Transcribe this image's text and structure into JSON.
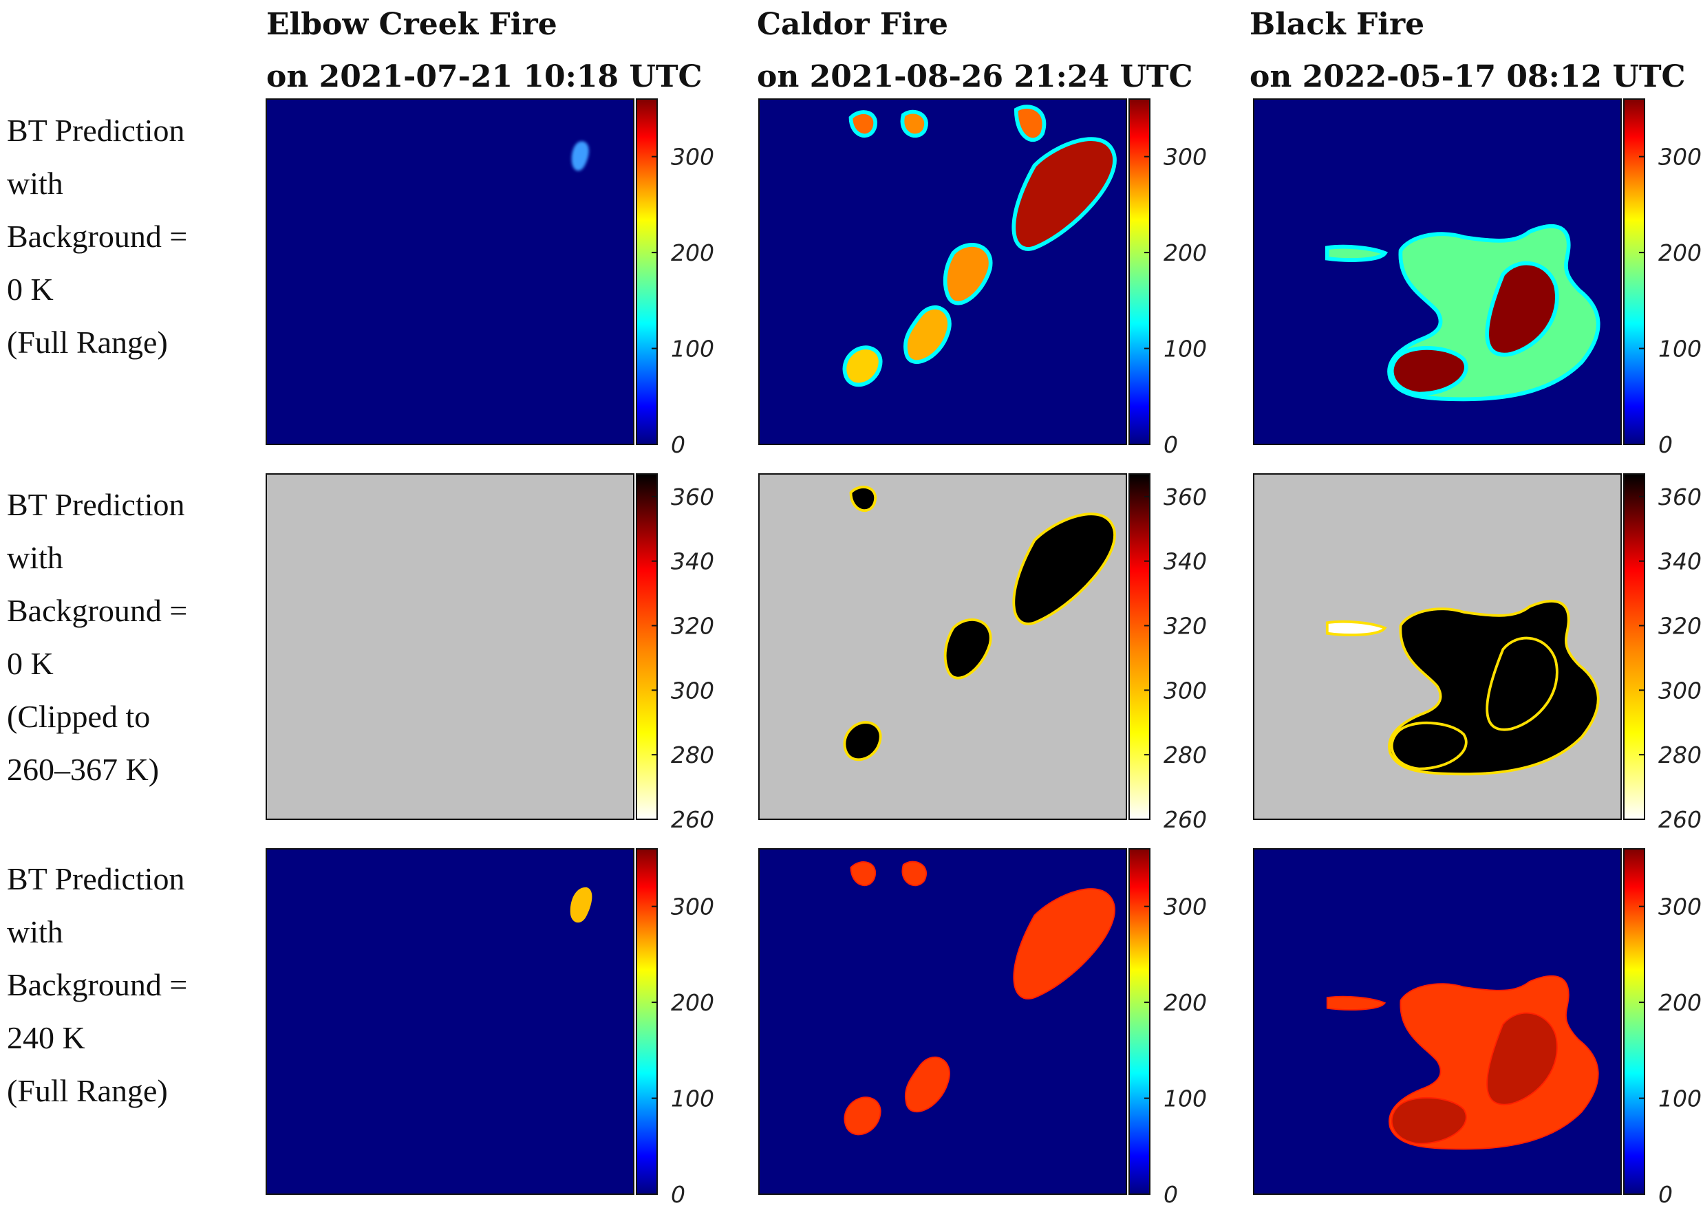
{
  "columns": [
    {
      "title_line1": "Elbow Creek Fire",
      "title_line2": "on 2021-07-21 10:18 UTC"
    },
    {
      "title_line1": "Caldor Fire",
      "title_line2": "on 2021-08-26 21:24 UTC"
    },
    {
      "title_line1": "Black Fire",
      "title_line2": "on 2022-05-17 08:12 UTC"
    }
  ],
  "rows": [
    {
      "label_lines": [
        "BT  Prediction",
        "with",
        "Background  =",
        "0 K",
        "(Full Range)"
      ]
    },
    {
      "label_lines": [
        "BT  Prediction",
        "with",
        "Background  =",
        "0 K",
        "(Clipped      to",
        "260–367 K)"
      ]
    },
    {
      "label_lines": [
        "BT  Prediction",
        "with",
        "Background  =",
        "240 K",
        "(Full Range)"
      ]
    }
  ],
  "colors": {
    "jet_background": "#00007f",
    "gray_background": "#c0c0c0",
    "hot_low": "#ffffff",
    "hot_high": "#000000"
  },
  "chart_data": [
    {
      "type": "heatmap",
      "row": 0,
      "colormap": "jet",
      "background_value": 0,
      "colorbar": {
        "min": 0,
        "max": 360,
        "ticks": [
          0,
          100,
          200,
          300
        ]
      }
    },
    {
      "type": "heatmap",
      "row": 1,
      "colormap": "hot_r",
      "background_value": null,
      "colorbar": {
        "min": 260,
        "max": 367,
        "ticks": [
          260,
          280,
          300,
          320,
          340,
          360
        ]
      }
    },
    {
      "type": "heatmap",
      "row": 2,
      "colormap": "jet",
      "background_value": 240,
      "colorbar": {
        "min": 0,
        "max": 360,
        "ticks": [
          0,
          100,
          200,
          300
        ]
      }
    }
  ]
}
